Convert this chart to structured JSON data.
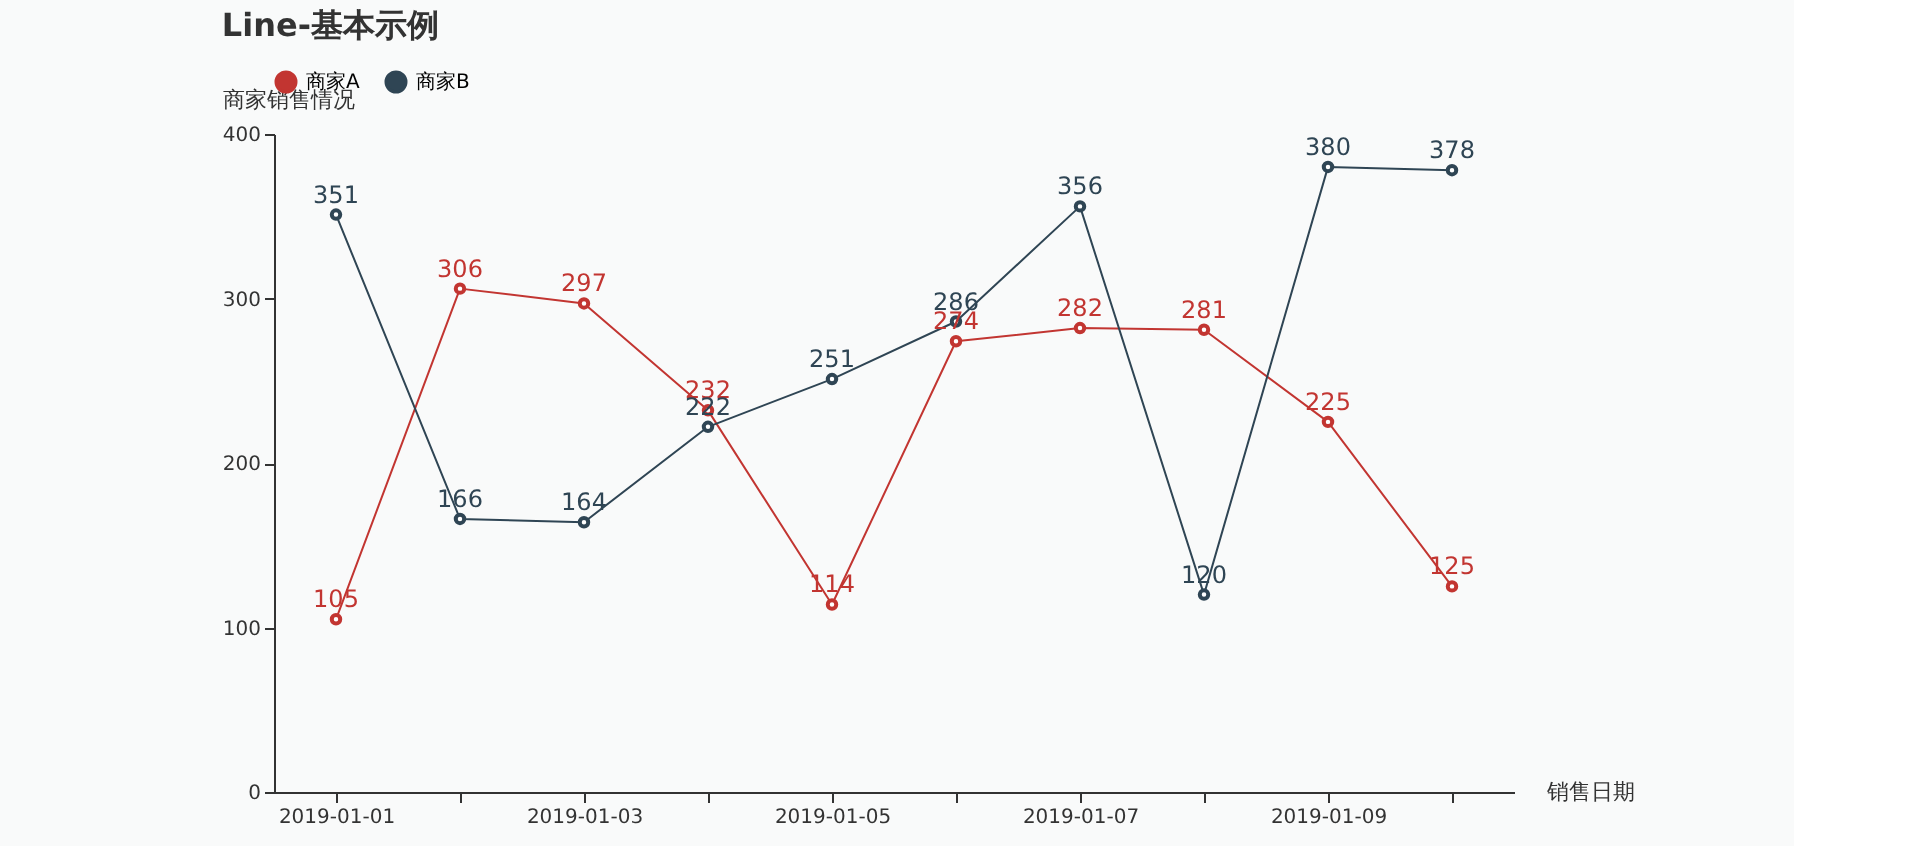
{
  "chart_data": {
    "type": "line",
    "title": "Line-基本示例",
    "xlabel": "销售日期",
    "ylabel": "商家销售情况",
    "categories": [
      "2019-01-01",
      null,
      "2019-01-03",
      null,
      "2019-01-05",
      null,
      "2019-01-07",
      null,
      "2019-01-09",
      null
    ],
    "series": [
      {
        "name": "商家A",
        "color": "#c23531",
        "values": [
          105,
          306,
          297,
          232,
          114,
          274,
          282,
          281,
          225,
          125
        ]
      },
      {
        "name": "商家B",
        "color": "#2f4554",
        "values": [
          351,
          166,
          164,
          222,
          251,
          286,
          356,
          120,
          380,
          378
        ]
      }
    ],
    "ylim": [
      0,
      400
    ],
    "yticks": [
      0,
      100,
      200,
      300,
      400
    ],
    "grid": false,
    "legend": "top",
    "marker": "circle",
    "line_style": "solid",
    "data_labels": true
  }
}
